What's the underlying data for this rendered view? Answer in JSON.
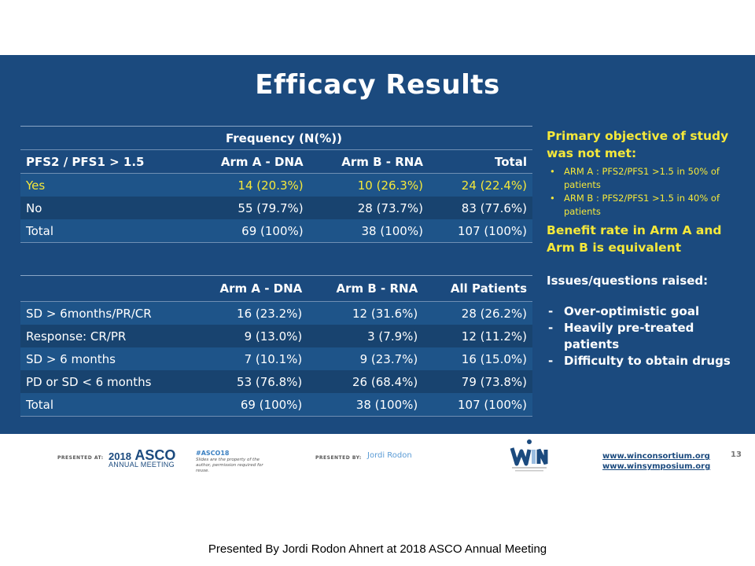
{
  "slide": {
    "title": "Efficacy Results",
    "page_number": "13"
  },
  "table1": {
    "group_header": "Frequency (N(%))",
    "headers": [
      "PFS2 / PFS1 > 1.5",
      "Arm A - DNA",
      "Arm B - RNA",
      "Total"
    ],
    "rows": [
      [
        "Yes",
        "14 (20.3%)",
        "10 (26.3%)",
        "24 (22.4%)"
      ],
      [
        "No",
        "55 (79.7%)",
        "28 (73.7%)",
        "83 (77.6%)"
      ],
      [
        "Total",
        "69 (100%)",
        "38 (100%)",
        "107 (100%)"
      ]
    ]
  },
  "table2": {
    "headers": [
      "",
      "Arm A - DNA",
      "Arm B - RNA",
      "All Patients"
    ],
    "rows": [
      [
        "SD > 6months/PR/CR",
        "16 (23.2%)",
        "12 (31.6%)",
        "28 (26.2%)"
      ],
      [
        "Response: CR/PR",
        "9 (13.0%)",
        "3 (7.9%)",
        "12 (11.2%)"
      ],
      [
        "SD > 6 months",
        "7 (10.1%)",
        "9 (23.7%)",
        "16 (15.0%)"
      ],
      [
        "PD or SD < 6 months",
        "53 (76.8%)",
        "26 (68.4%)",
        "79 (73.8%)"
      ],
      [
        "Total",
        "69 (100%)",
        "38 (100%)",
        "107 (100%)"
      ]
    ]
  },
  "side": {
    "objective_heading": "Primary objective of study was not met:",
    "bullets": [
      "ARM A : PFS2/PFS1 >1.5 in 50% of patients",
      "ARM B : PFS2/PFS1 >1.5 in 40% of patients"
    ],
    "benefit_text": "Benefit rate in Arm A and Arm B is equivalent",
    "issues_heading": "Issues/questions raised:",
    "issues": [
      "Over-optimistic goal",
      "Heavily pre-treated patients",
      "Difficulty to obtain drugs"
    ]
  },
  "footer": {
    "presented_at_label": "PRESENTED AT:",
    "asco_year": "2018",
    "asco_name": "ASCO",
    "asco_sub": "ANNUAL MEETING",
    "hashtag": "#ASCO18",
    "hashtag_note": "Slides are the property of the author, permission required for reuse.",
    "presented_by_label": "PRESENTED BY:",
    "presenter": "Jordi Rodon",
    "link1": "www.winconsortium.org",
    "link2": "www.winsymposium.org"
  },
  "caption": "Presented By Jordi Rodon Ahnert at 2018 ASCO Annual Meeting",
  "colors": {
    "slide_bg": "#1b4a7e",
    "highlight": "#f5e83a"
  }
}
